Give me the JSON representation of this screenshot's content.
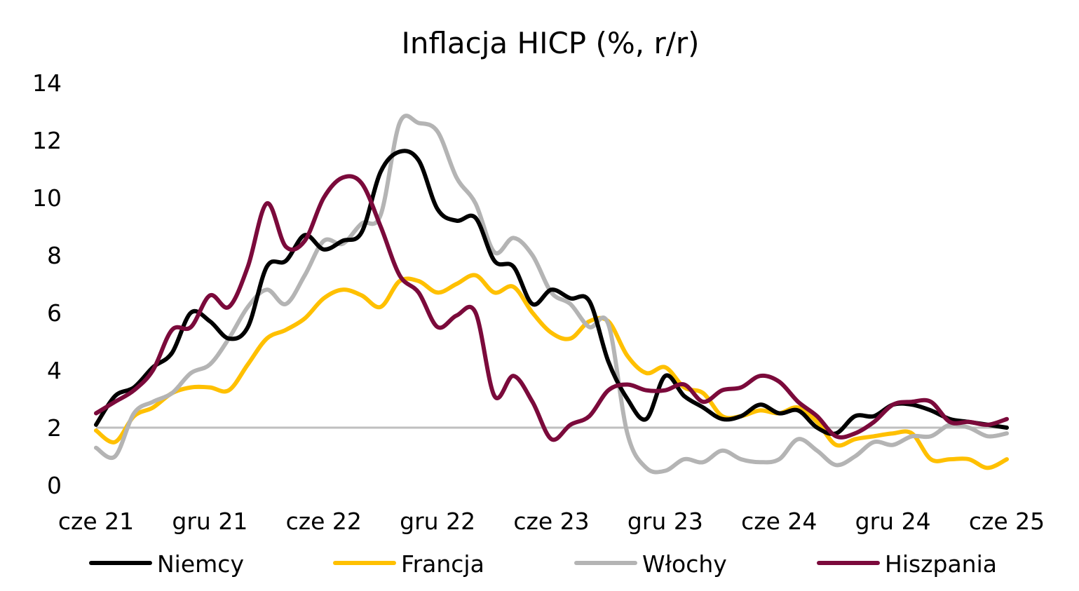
{
  "chart_data": {
    "type": "line",
    "title": "Inflacja HICP (%, r/r)",
    "xlabel": "",
    "ylabel": "",
    "ylim": [
      0,
      14
    ],
    "yticks": [
      0,
      2,
      4,
      6,
      8,
      10,
      12,
      14
    ],
    "x_tick_labels": [
      "cze 21",
      "gru 21",
      "cze 22",
      "gru 22",
      "cze 23",
      "gru 23",
      "cze 24",
      "gru 24",
      "cze 25"
    ],
    "x_tick_positions": [
      0,
      6,
      12,
      18,
      24,
      30,
      36,
      42,
      48
    ],
    "reference_line": 2,
    "legend_position": "bottom",
    "grid": false,
    "months": [
      "06.2021",
      "07.2021",
      "08.2021",
      "09.2021",
      "10.2021",
      "11.2021",
      "12.2021",
      "01.2022",
      "02.2022",
      "03.2022",
      "04.2022",
      "05.2022",
      "06.2022",
      "07.2022",
      "08.2022",
      "09.2022",
      "10.2022",
      "11.2022",
      "12.2022",
      "01.2023",
      "02.2023",
      "03.2023",
      "04.2023",
      "05.2023",
      "06.2023",
      "07.2023",
      "08.2023",
      "09.2023",
      "10.2023",
      "11.2023",
      "12.2023",
      "01.2024",
      "02.2024",
      "03.2024",
      "04.2024",
      "05.2024",
      "06.2024",
      "07.2024",
      "08.2024",
      "09.2024",
      "10.2024",
      "11.2024",
      "12.2024",
      "01.2025",
      "02.2025",
      "03.2025",
      "04.2025",
      "05.2025",
      "06.2025"
    ],
    "series": [
      {
        "name": "Niemcy",
        "color": "#000000",
        "values": [
          2.1,
          3.1,
          3.4,
          4.1,
          4.6,
          6.0,
          5.7,
          5.1,
          5.5,
          7.6,
          7.8,
          8.7,
          8.2,
          8.5,
          8.8,
          10.9,
          11.6,
          11.3,
          9.6,
          9.2,
          9.3,
          7.8,
          7.6,
          6.3,
          6.8,
          6.5,
          6.4,
          4.3,
          3.0,
          2.3,
          3.8,
          3.1,
          2.7,
          2.3,
          2.4,
          2.8,
          2.5,
          2.6,
          2.0,
          1.8,
          2.4,
          2.4,
          2.8,
          2.8,
          2.6,
          2.3,
          2.2,
          2.1,
          2.0
        ]
      },
      {
        "name": "Francja",
        "color": "#FFC000",
        "values": [
          1.9,
          1.5,
          2.4,
          2.7,
          3.2,
          3.4,
          3.4,
          3.3,
          4.2,
          5.1,
          5.4,
          5.8,
          6.5,
          6.8,
          6.6,
          6.2,
          7.1,
          7.1,
          6.7,
          7.0,
          7.3,
          6.7,
          6.9,
          6.0,
          5.3,
          5.1,
          5.7,
          5.7,
          4.5,
          3.9,
          4.1,
          3.4,
          3.2,
          2.4,
          2.4,
          2.6,
          2.5,
          2.7,
          2.2,
          1.4,
          1.6,
          1.7,
          1.8,
          1.8,
          0.9,
          0.9,
          0.9,
          0.6,
          0.9
        ]
      },
      {
        "name": "Włochy",
        "color": "#B4B4B4",
        "values": [
          1.3,
          1.0,
          2.5,
          2.9,
          3.2,
          3.9,
          4.2,
          5.1,
          6.2,
          6.8,
          6.3,
          7.3,
          8.5,
          8.4,
          9.1,
          9.4,
          12.6,
          12.6,
          12.3,
          10.7,
          9.8,
          8.1,
          8.6,
          8.0,
          6.7,
          6.3,
          5.5,
          5.6,
          1.8,
          0.6,
          0.5,
          0.9,
          0.8,
          1.2,
          0.9,
          0.8,
          0.9,
          1.6,
          1.2,
          0.7,
          1.0,
          1.5,
          1.4,
          1.7,
          1.7,
          2.1,
          2.0,
          1.7,
          1.8
        ]
      },
      {
        "name": "Hiszpania",
        "color": "#7B0A3B",
        "values": [
          2.5,
          2.9,
          3.3,
          4.0,
          5.4,
          5.5,
          6.6,
          6.2,
          7.6,
          9.8,
          8.3,
          8.5,
          10.0,
          10.7,
          10.5,
          9.0,
          7.3,
          6.7,
          5.5,
          5.9,
          6.0,
          3.1,
          3.8,
          2.9,
          1.6,
          2.1,
          2.4,
          3.3,
          3.5,
          3.3,
          3.3,
          3.5,
          2.9,
          3.3,
          3.4,
          3.8,
          3.6,
          2.9,
          2.4,
          1.7,
          1.8,
          2.2,
          2.8,
          2.9,
          2.9,
          2.2,
          2.2,
          2.1,
          2.3
        ]
      }
    ]
  }
}
